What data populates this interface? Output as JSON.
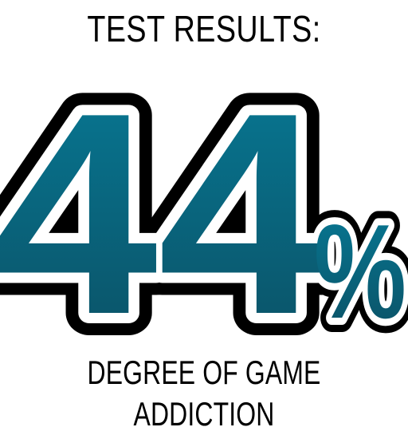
{
  "header": {
    "title": "TEST RESULTS:"
  },
  "result": {
    "digits": "44",
    "percent_sign": "%",
    "value_percent": 44
  },
  "footer": {
    "label": "DEGREE OF GAME ADDICTION"
  },
  "colors": {
    "background": "#ffffff",
    "outline": "#000000",
    "halo": "#ffffff",
    "digit_fill_top": "#077a96",
    "digit_fill_bottom": "#0b4f63"
  }
}
